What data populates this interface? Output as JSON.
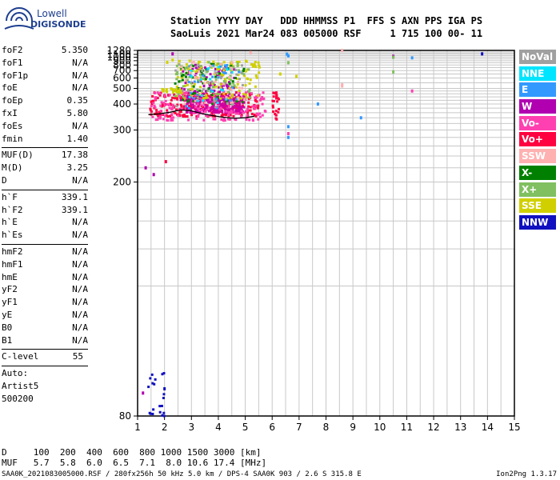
{
  "logo": {
    "line1": "Lowell",
    "line2": "DIGISONDE"
  },
  "header": {
    "line1": "Station YYYY DAY   DDD HHMMSS P1  FFS S AXN PPS IGA PS",
    "line2": "SaoLuis 2021 Mar24 083 005000 RSF     1 715 100 00- 11"
  },
  "params": {
    "group1": [
      {
        "k": "foF2",
        "v": "5.350"
      },
      {
        "k": "foF1",
        "v": "N/A"
      },
      {
        "k": "foF1p",
        "v": "N/A"
      },
      {
        "k": "foE",
        "v": "N/A"
      },
      {
        "k": "foEp",
        "v": "0.35"
      },
      {
        "k": "fxI",
        "v": "5.80"
      },
      {
        "k": "foEs",
        "v": "N/A"
      },
      {
        "k": "fmin",
        "v": "1.40"
      }
    ],
    "group2": [
      {
        "k": "MUF(D)",
        "v": "17.38"
      },
      {
        "k": "M(D)",
        "v": "3.25"
      },
      {
        "k": "D",
        "v": "N/A"
      }
    ],
    "group3": [
      {
        "k": "h`F",
        "v": "339.1"
      },
      {
        "k": "h`F2",
        "v": "339.1"
      },
      {
        "k": "h`E",
        "v": "N/A"
      },
      {
        "k": "h`Es",
        "v": "N/A"
      }
    ],
    "group4": [
      {
        "k": "hmF2",
        "v": "N/A"
      },
      {
        "k": "hmF1",
        "v": "N/A"
      },
      {
        "k": "hmE",
        "v": "N/A"
      },
      {
        "k": "yF2",
        "v": "N/A"
      },
      {
        "k": "yF1",
        "v": "N/A"
      },
      {
        "k": "yE",
        "v": "N/A"
      },
      {
        "k": "B0",
        "v": "N/A"
      },
      {
        "k": "B1",
        "v": "N/A"
      }
    ],
    "clevel": {
      "k": "C-level",
      "v": "55"
    },
    "auto": [
      "Auto:",
      "Artist5",
      "500200"
    ]
  },
  "legend": [
    {
      "label": "NoVal",
      "color": "#a0a0a0"
    },
    {
      "label": "NNE",
      "color": "#00e5ff"
    },
    {
      "label": "E",
      "color": "#3399ff"
    },
    {
      "label": "W",
      "color": "#b000b0"
    },
    {
      "label": "Vo-",
      "color": "#ff40b0"
    },
    {
      "label": "Vo+",
      "color": "#ff0040"
    },
    {
      "label": "SSW",
      "color": "#ffb0b0"
    },
    {
      "label": "X-",
      "color": "#008000"
    },
    {
      "label": "X+",
      "color": "#80c060"
    },
    {
      "label": "SSE",
      "color": "#d0d000"
    },
    {
      "label": "NNW",
      "color": "#1010c0"
    }
  ],
  "muf_table": {
    "line1": "D     100  200  400  600  800 1000 1500 3000 [km]",
    "line2": "MUF   5.7  5.8  6.0  6.5  7.1  8.0 10.6 17.4 [MHz]"
  },
  "footer": {
    "info": "SAA0K_2021083005000.RSF / 280fx256h 50 kHz 5.0 km / DPS-4 SAA0K 903 / 2.6 S 315.8 E",
    "version": "Ion2Png 1.3.17"
  },
  "chart_data": {
    "type": "scatter",
    "xlim": [
      1,
      15
    ],
    "ylim": [
      80,
      1280
    ],
    "y_scale": "reciprocal",
    "x_ticks": [
      1,
      2,
      3,
      4,
      5,
      6,
      7,
      8,
      9,
      10,
      11,
      12,
      13,
      14,
      15
    ],
    "x_tick_labels": [
      "1",
      "2",
      "3",
      "4",
      "5",
      "6",
      "7",
      "8",
      "9",
      "10",
      "11",
      "12",
      "13",
      "14",
      "15"
    ],
    "y_ticks": [
      80,
      200,
      300,
      400,
      500,
      600,
      700,
      800,
      900,
      1000,
      1100,
      1280
    ],
    "y_tick_labels": [
      "80",
      "200",
      "300",
      "400",
      "500",
      "600",
      "700",
      "800",
      "900",
      "1000",
      "1100",
      "1280"
    ],
    "x_grid": [
      1.5,
      2,
      2.5,
      3,
      3.5,
      4,
      4.5,
      5,
      5.5,
      6,
      6.5,
      7,
      7.5,
      8,
      8.5,
      9,
      9.5,
      10,
      10.5,
      11,
      11.5,
      12,
      12.5,
      13,
      13.5,
      14,
      14.5
    ],
    "y_grid": [
      120,
      140,
      160,
      180,
      200,
      220,
      240,
      260,
      280,
      300,
      320,
      340,
      360,
      380,
      400,
      420,
      440,
      460,
      480,
      500,
      550,
      600,
      650,
      700,
      750,
      800,
      850,
      900,
      950,
      1000,
      1050,
      1100,
      1150,
      1200
    ],
    "trace": {
      "name": "h`F trace",
      "color": "#000000",
      "x": [
        1.4,
        1.8,
        2.2,
        2.6,
        3.0,
        3.4,
        3.8,
        4.2,
        4.6,
        5.0,
        5.35
      ],
      "y": [
        352,
        355,
        362,
        372,
        368,
        356,
        348,
        342,
        338,
        340,
        346
      ]
    },
    "clusters": [
      {
        "color": "#ff0040",
        "x": [
          1.45,
          5.5
        ],
        "y": [
          345,
          470
        ],
        "n": 260
      },
      {
        "color": "#d000a0",
        "x": [
          2.8,
          5.0
        ],
        "y": [
          360,
          450
        ],
        "n": 260
      },
      {
        "color": "#ff40b0",
        "x": [
          1.5,
          5.8
        ],
        "y": [
          330,
          480
        ],
        "n": 160
      },
      {
        "color": "#b000b0",
        "x": [
          2.6,
          4.6
        ],
        "y": [
          420,
          820
        ],
        "n": 110
      },
      {
        "color": "#d0d000",
        "x": [
          2.4,
          5.6
        ],
        "y": [
          430,
          900
        ],
        "n": 140
      },
      {
        "color": "#80c060",
        "x": [
          2.4,
          5.2
        ],
        "y": [
          420,
          860
        ],
        "n": 70
      },
      {
        "color": "#008000",
        "x": [
          2.4,
          5.0
        ],
        "y": [
          400,
          820
        ],
        "n": 50
      },
      {
        "color": "#3399ff",
        "x": [
          2.8,
          4.8
        ],
        "y": [
          380,
          800
        ],
        "n": 30
      },
      {
        "color": "#00e5ff",
        "x": [
          2.8,
          4.6
        ],
        "y": [
          400,
          760
        ],
        "n": 20
      },
      {
        "color": "#ffb0b0",
        "x": [
          2.6,
          5.0
        ],
        "y": [
          400,
          900
        ],
        "n": 35
      },
      {
        "color": "#a0a0a0",
        "x": [
          2.2,
          5.0
        ],
        "y": [
          380,
          820
        ],
        "n": 25
      },
      {
        "color": "#1010c0",
        "x": [
          1.4,
          2.0
        ],
        "y": [
          80,
          90
        ],
        "n": 20
      },
      {
        "color": "#ff0040",
        "x": [
          6.0,
          6.3
        ],
        "y": [
          330,
          470
        ],
        "n": 25
      },
      {
        "color": "#d0d000",
        "x": [
          1.9,
          2.6
        ],
        "y": [
          470,
          500
        ],
        "n": 30
      }
    ],
    "points": [
      {
        "x": 6.6,
        "y": 1040,
        "c": "#3399ff"
      },
      {
        "x": 6.6,
        "y": 1050,
        "c": "#3399ff"
      },
      {
        "x": 6.55,
        "y": 1110,
        "c": "#3399ff"
      },
      {
        "x": 6.6,
        "y": 310,
        "c": "#3399ff"
      },
      {
        "x": 6.6,
        "y": 290,
        "c": "#ff40b0"
      },
      {
        "x": 6.6,
        "y": 280,
        "c": "#3399ff"
      },
      {
        "x": 8.6,
        "y": 1280,
        "c": "#ffb0b0"
      },
      {
        "x": 8.6,
        "y": 520,
        "c": "#ffb0b0"
      },
      {
        "x": 8.6,
        "y": 530,
        "c": "#ffb0b0"
      },
      {
        "x": 10.5,
        "y": 1030,
        "c": "#b000b0"
      },
      {
        "x": 10.5,
        "y": 1000,
        "c": "#80c060"
      },
      {
        "x": 11.2,
        "y": 980,
        "c": "#3399ff"
      },
      {
        "x": 10.5,
        "y": 680,
        "c": "#80c060"
      },
      {
        "x": 11.2,
        "y": 480,
        "c": "#ff40b0"
      },
      {
        "x": 13.8,
        "y": 1120,
        "c": "#1010c0"
      },
      {
        "x": 9.3,
        "y": 340,
        "c": "#3399ff"
      },
      {
        "x": 7.7,
        "y": 400,
        "c": "#3399ff"
      },
      {
        "x": 2.3,
        "y": 1120,
        "c": "#b000b0"
      },
      {
        "x": 5.2,
        "y": 1180,
        "c": "#ffb0b0"
      },
      {
        "x": 1.3,
        "y": 220,
        "c": "#b000b0"
      },
      {
        "x": 1.6,
        "y": 210,
        "c": "#b000b0"
      },
      {
        "x": 2.05,
        "y": 230,
        "c": "#ff0040"
      },
      {
        "x": 1.2,
        "y": 85,
        "c": "#b000b0"
      },
      {
        "x": 2.0,
        "y": 86,
        "c": "#1010c0"
      },
      {
        "x": 6.6,
        "y": 850,
        "c": "#80c060"
      },
      {
        "x": 6.3,
        "y": 650,
        "c": "#d0d000"
      },
      {
        "x": 6.9,
        "y": 620,
        "c": "#d0d000"
      },
      {
        "x": 2.3,
        "y": 920,
        "c": "#d0d000"
      },
      {
        "x": 2.1,
        "y": 860,
        "c": "#d0d000"
      }
    ]
  }
}
